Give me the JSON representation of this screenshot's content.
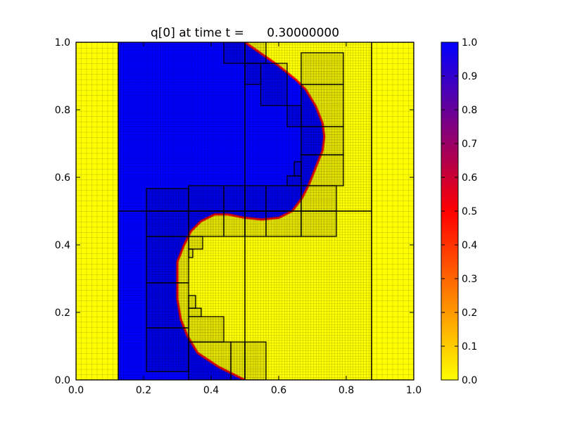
{
  "chart_data": {
    "type": "heatmap",
    "title": "q[0] at time t =      0.30000000",
    "xlabel": "",
    "ylabel": "",
    "xlim": [
      0.0,
      1.0
    ],
    "ylim": [
      0.0,
      1.0
    ],
    "x_ticks": [
      "0.0",
      "0.2",
      "0.4",
      "0.6",
      "0.8",
      "1.0"
    ],
    "y_ticks": [
      "0.0",
      "0.2",
      "0.4",
      "0.6",
      "0.8",
      "1.0"
    ],
    "colorbar": {
      "range": [
        0.0,
        1.0
      ],
      "ticks": [
        "0.0",
        "0.1",
        "0.2",
        "0.3",
        "0.4",
        "0.5",
        "0.6",
        "0.7",
        "0.8",
        "0.9",
        "1.0"
      ],
      "colormap": "yellow-red-blue",
      "stops": [
        {
          "value": 0.0,
          "color": "#ffff00"
        },
        {
          "value": 0.5,
          "color": "#ff0000"
        },
        {
          "value": 1.0,
          "color": "#0000ff"
        }
      ]
    },
    "field": {
      "low_color": "#ffff00",
      "high_color": "#0000ff",
      "interface_color": "#ff0000"
    },
    "grid": true,
    "amr_patches": [
      [
        0.0,
        0.0,
        0.125,
        1.0,
        0.0156
      ],
      [
        0.125,
        0.5,
        0.5,
        1.0,
        0.00781
      ],
      [
        0.5,
        0.5,
        0.875,
        1.0,
        0.00781
      ],
      [
        0.125,
        0.0,
        0.5,
        0.5,
        0.00781
      ],
      [
        0.5,
        0.0,
        0.875,
        0.5,
        0.00781
      ],
      [
        0.875,
        0.0,
        1.0,
        1.0,
        0.0156
      ],
      [
        0.4375,
        0.9375,
        0.5,
        1.0,
        0.00391
      ],
      [
        0.5,
        0.9375,
        0.5625,
        1.0,
        0.00391
      ],
      [
        0.5,
        0.875,
        0.5469,
        0.9375,
        0.00391
      ],
      [
        0.5469,
        0.8125,
        0.625,
        0.9375,
        0.00391
      ],
      [
        0.625,
        0.75,
        0.6667,
        0.8125,
        0.00391
      ],
      [
        0.6667,
        0.875,
        0.7917,
        0.9688,
        0.00391
      ],
      [
        0.6667,
        0.75,
        0.7917,
        0.875,
        0.00391
      ],
      [
        0.6667,
        0.6667,
        0.7917,
        0.75,
        0.00391
      ],
      [
        0.6667,
        0.575,
        0.7917,
        0.6667,
        0.00391
      ],
      [
        0.6458,
        0.6042,
        0.6667,
        0.6458,
        0.00391
      ],
      [
        0.625,
        0.575,
        0.6667,
        0.6042,
        0.00391
      ],
      [
        0.2083,
        0.5,
        0.3333,
        0.5667,
        0.00391
      ],
      [
        0.3333,
        0.5,
        0.4375,
        0.575,
        0.00391
      ],
      [
        0.4375,
        0.5,
        0.5,
        0.575,
        0.00391
      ],
      [
        0.5,
        0.5,
        0.5625,
        0.575,
        0.00391
      ],
      [
        0.5625,
        0.5,
        0.6667,
        0.575,
        0.00391
      ],
      [
        0.6667,
        0.5,
        0.7708,
        0.575,
        0.00391
      ],
      [
        0.2083,
        0.425,
        0.3333,
        0.5,
        0.00391
      ],
      [
        0.3333,
        0.425,
        0.4375,
        0.5,
        0.00391
      ],
      [
        0.4375,
        0.425,
        0.5,
        0.5,
        0.00391
      ],
      [
        0.5,
        0.425,
        0.5625,
        0.5,
        0.00391
      ],
      [
        0.5625,
        0.425,
        0.6667,
        0.5,
        0.00391
      ],
      [
        0.6667,
        0.425,
        0.7708,
        0.5,
        0.00391
      ],
      [
        0.2083,
        0.2875,
        0.3333,
        0.425,
        0.00391
      ],
      [
        0.3333,
        0.3875,
        0.375,
        0.425,
        0.00391
      ],
      [
        0.3333,
        0.3625,
        0.3458,
        0.3875,
        0.00391
      ],
      [
        0.2083,
        0.1542,
        0.3333,
        0.2875,
        0.00391
      ],
      [
        0.3333,
        0.2125,
        0.3542,
        0.25,
        0.00391
      ],
      [
        0.3333,
        0.1875,
        0.3708,
        0.2125,
        0.00391
      ],
      [
        0.3333,
        0.1125,
        0.4375,
        0.1875,
        0.00391
      ],
      [
        0.2083,
        0.025,
        0.3333,
        0.1542,
        0.00391
      ],
      [
        0.3333,
        0.0,
        0.4583,
        0.1125,
        0.00391
      ],
      [
        0.4583,
        0.0,
        0.5,
        0.1125,
        0.00391
      ],
      [
        0.5,
        0.0,
        0.5625,
        0.1125,
        0.00391
      ]
    ]
  }
}
